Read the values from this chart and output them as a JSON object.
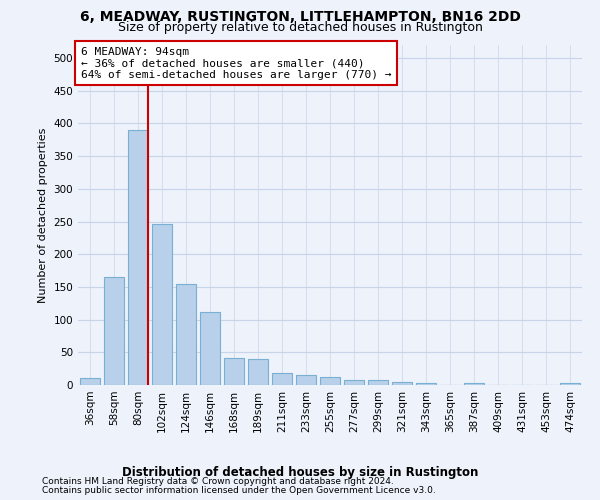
{
  "title": "6, MEADWAY, RUSTINGTON, LITTLEHAMPTON, BN16 2DD",
  "subtitle": "Size of property relative to detached houses in Rustington",
  "xlabel": "Distribution of detached houses by size in Rustington",
  "ylabel": "Number of detached properties",
  "categories": [
    "36sqm",
    "58sqm",
    "80sqm",
    "102sqm",
    "124sqm",
    "146sqm",
    "168sqm",
    "189sqm",
    "211sqm",
    "233sqm",
    "255sqm",
    "277sqm",
    "299sqm",
    "321sqm",
    "343sqm",
    "365sqm",
    "387sqm",
    "409sqm",
    "431sqm",
    "453sqm",
    "474sqm"
  ],
  "values": [
    10,
    165,
    390,
    247,
    155,
    112,
    42,
    40,
    18,
    15,
    13,
    8,
    7,
    5,
    3,
    0,
    3,
    0,
    0,
    0,
    3
  ],
  "bar_color": "#b8d0ea",
  "bar_edgecolor": "#7aafd4",
  "grid_color": "#c8d4e8",
  "vline_color": "#cc0000",
  "annotation_line1": "6 MEADWAY: 94sqm",
  "annotation_line2": "← 36% of detached houses are smaller (440)",
  "annotation_line3": "64% of semi-detached houses are larger (770) →",
  "annotation_box_edgecolor": "#cc0000",
  "ylim": [
    0,
    520
  ],
  "yticks": [
    0,
    50,
    100,
    150,
    200,
    250,
    300,
    350,
    400,
    450,
    500
  ],
  "footer1": "Contains HM Land Registry data © Crown copyright and database right 2024.",
  "footer2": "Contains public sector information licensed under the Open Government Licence v3.0.",
  "background_color": "#edf2fb",
  "plot_bg_color": "#edf2fb",
  "title_fontsize": 10,
  "subtitle_fontsize": 9,
  "ylabel_fontsize": 8,
  "xlabel_fontsize": 8.5,
  "tick_fontsize": 7.5,
  "footer_fontsize": 6.5
}
